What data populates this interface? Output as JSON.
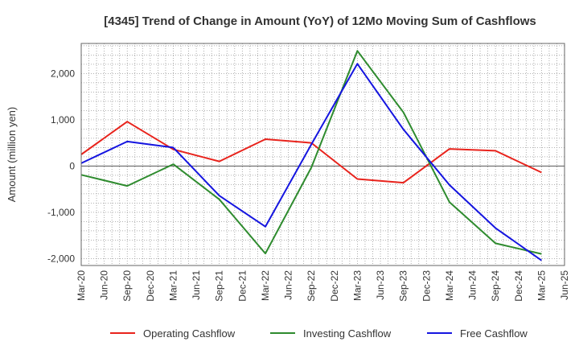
{
  "chart_data": {
    "type": "line",
    "title": "[4345]  Trend of Change in Amount (YoY) of 12Mo Moving Sum of Cashflows",
    "xlabel": "",
    "ylabel": "Amount (million yen)",
    "ylim": [
      -2150,
      2650
    ],
    "y_ticks": [
      2000,
      1000,
      0,
      -1000,
      -2000
    ],
    "y_tick_labels": [
      "2,000",
      "1,000",
      "0",
      "-1,000",
      "-2,000"
    ],
    "x_tick_labels": [
      "Mar-20",
      "Jun-20",
      "Sep-20",
      "Dec-20",
      "Mar-21",
      "Jun-21",
      "Sep-21",
      "Dec-21",
      "Mar-22",
      "Jun-22",
      "Sep-22",
      "Dec-22",
      "Mar-23",
      "Jun-23",
      "Sep-23",
      "Dec-23",
      "Mar-24",
      "Jun-24",
      "Sep-24",
      "Dec-24",
      "Mar-25",
      "Jun-25"
    ],
    "x": [
      "Mar-20",
      "Sep-20",
      "Mar-21",
      "Sep-21",
      "Mar-22",
      "Sep-22",
      "Mar-23",
      "Sep-23",
      "Mar-24",
      "Sep-24",
      "Mar-25"
    ],
    "grid": true,
    "legend_position": "bottom",
    "series": [
      {
        "name": "Operating Cashflow",
        "color": "#e8231c",
        "values": [
          250,
          960,
          360,
          100,
          580,
          500,
          -280,
          -360,
          370,
          330,
          -140
        ]
      },
      {
        "name": "Investing Cashflow",
        "color": "#2e8b2e",
        "values": [
          -190,
          -430,
          40,
          -720,
          -1890,
          -30,
          2490,
          1160,
          -780,
          -1670,
          -1900
        ]
      },
      {
        "name": "Free Cashflow",
        "color": "#1515e0",
        "values": [
          60,
          530,
          400,
          -640,
          -1310,
          470,
          2210,
          790,
          -410,
          -1340,
          -2040
        ]
      }
    ]
  }
}
